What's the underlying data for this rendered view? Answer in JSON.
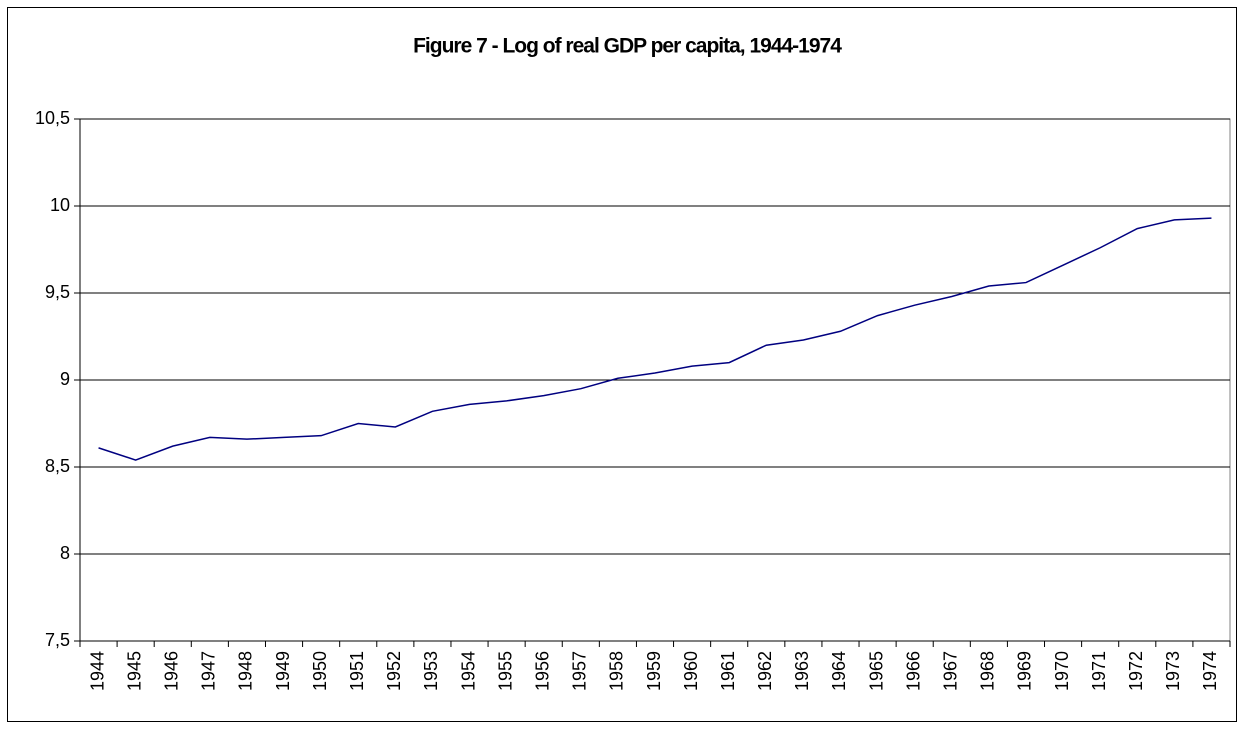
{
  "chart_data": {
    "type": "line",
    "title": "Figure 7 - Log of real GDP per capita, 1944-1974",
    "categories": [
      "1944",
      "1945",
      "1946",
      "1947",
      "1948",
      "1949",
      "1950",
      "1951",
      "1952",
      "1953",
      "1954",
      "1955",
      "1956",
      "1957",
      "1958",
      "1959",
      "1960",
      "1961",
      "1962",
      "1963",
      "1964",
      "1965",
      "1966",
      "1967",
      "1968",
      "1969",
      "1970",
      "1971",
      "1972",
      "1973",
      "1974"
    ],
    "series": [
      {
        "color": "#000080",
        "values": [
          8.61,
          8.54,
          8.62,
          8.67,
          8.66,
          8.67,
          8.68,
          8.75,
          8.73,
          8.82,
          8.86,
          8.88,
          8.91,
          8.95,
          9.01,
          9.04,
          9.08,
          9.1,
          9.2,
          9.23,
          9.28,
          9.37,
          9.43,
          9.48,
          9.54,
          9.56,
          9.66,
          9.76,
          9.87,
          9.92,
          9.93
        ]
      }
    ],
    "ylim": [
      7.5,
      10.5
    ],
    "yticks": [
      {
        "value": 7.5,
        "label": "7,5"
      },
      8,
      {
        "value": 8.5,
        "label": "8,5"
      },
      9,
      {
        "value": 9.5,
        "label": "9,5"
      },
      10,
      {
        "value": 10.5,
        "label": "10,5"
      }
    ],
    "grid": true
  }
}
